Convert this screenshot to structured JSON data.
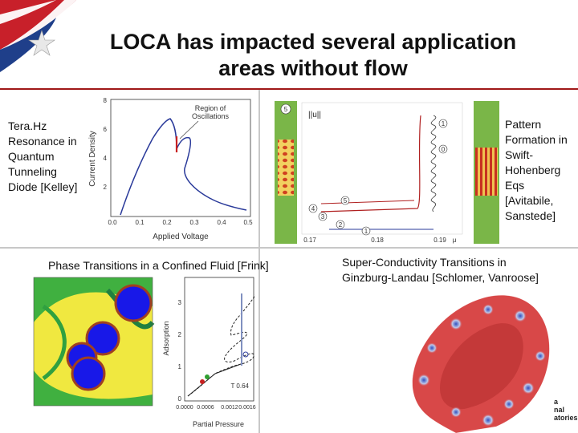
{
  "slide": {
    "title_line1": "LOCA has impacted several application",
    "title_line2": "areas without flow"
  },
  "panels": {
    "terahertz": {
      "caption": [
        "Tera.Hz",
        "Resonance in",
        "Quantum",
        "Tunneling",
        "Diode [Kelley]"
      ],
      "chart": {
        "annotation_line1": "Region of",
        "annotation_line2": "Oscillations",
        "xlabel": "Applied Voltage",
        "ylabel": "Current Density",
        "xticks": [
          "0.0",
          "0.1",
          "0.2",
          "0.3",
          "0.4",
          "0.5"
        ],
        "yticks": [
          "2",
          "4",
          "6",
          "8"
        ]
      }
    },
    "pattern": {
      "caption": [
        "Pattern",
        "Formation in",
        "Swift-",
        "Hohenberg",
        "Eqs",
        "[Avitabile,",
        "Sanstede]"
      ],
      "chart": {
        "ylabel": "||u||",
        "xlabel": "μ",
        "xticks": [
          "0.17",
          "0.18",
          "0.19"
        ],
        "markers": [
          "5",
          "1",
          "0",
          "5",
          "4",
          "3",
          "2",
          "1"
        ]
      }
    },
    "fluid": {
      "caption": "Phase Transitions in a Confined Fluid [Frink]",
      "chart": {
        "xlabel": "Partial Pressure",
        "ylabel": "Adsorption",
        "xticks": [
          "0.0000",
          "0.0006",
          "0.0012",
          "0.0016"
        ],
        "yticks": [
          "0",
          "1",
          "2",
          "3"
        ],
        "annotation": "T 0.64"
      }
    },
    "superconductivity": {
      "caption_line1": "Super-Conductivity Transitions in",
      "caption_line2": "Ginzburg-Landau [Schlomer, Vanroose]",
      "logo_partial": [
        "a",
        "nal",
        "atories"
      ]
    }
  },
  "colors": {
    "flag_red": "#c8202a",
    "flag_blue": "#1f3f8a",
    "curve_blue": "#2a3a9a",
    "curve_red": "#c82020",
    "stripe_green": "#7ab648"
  }
}
